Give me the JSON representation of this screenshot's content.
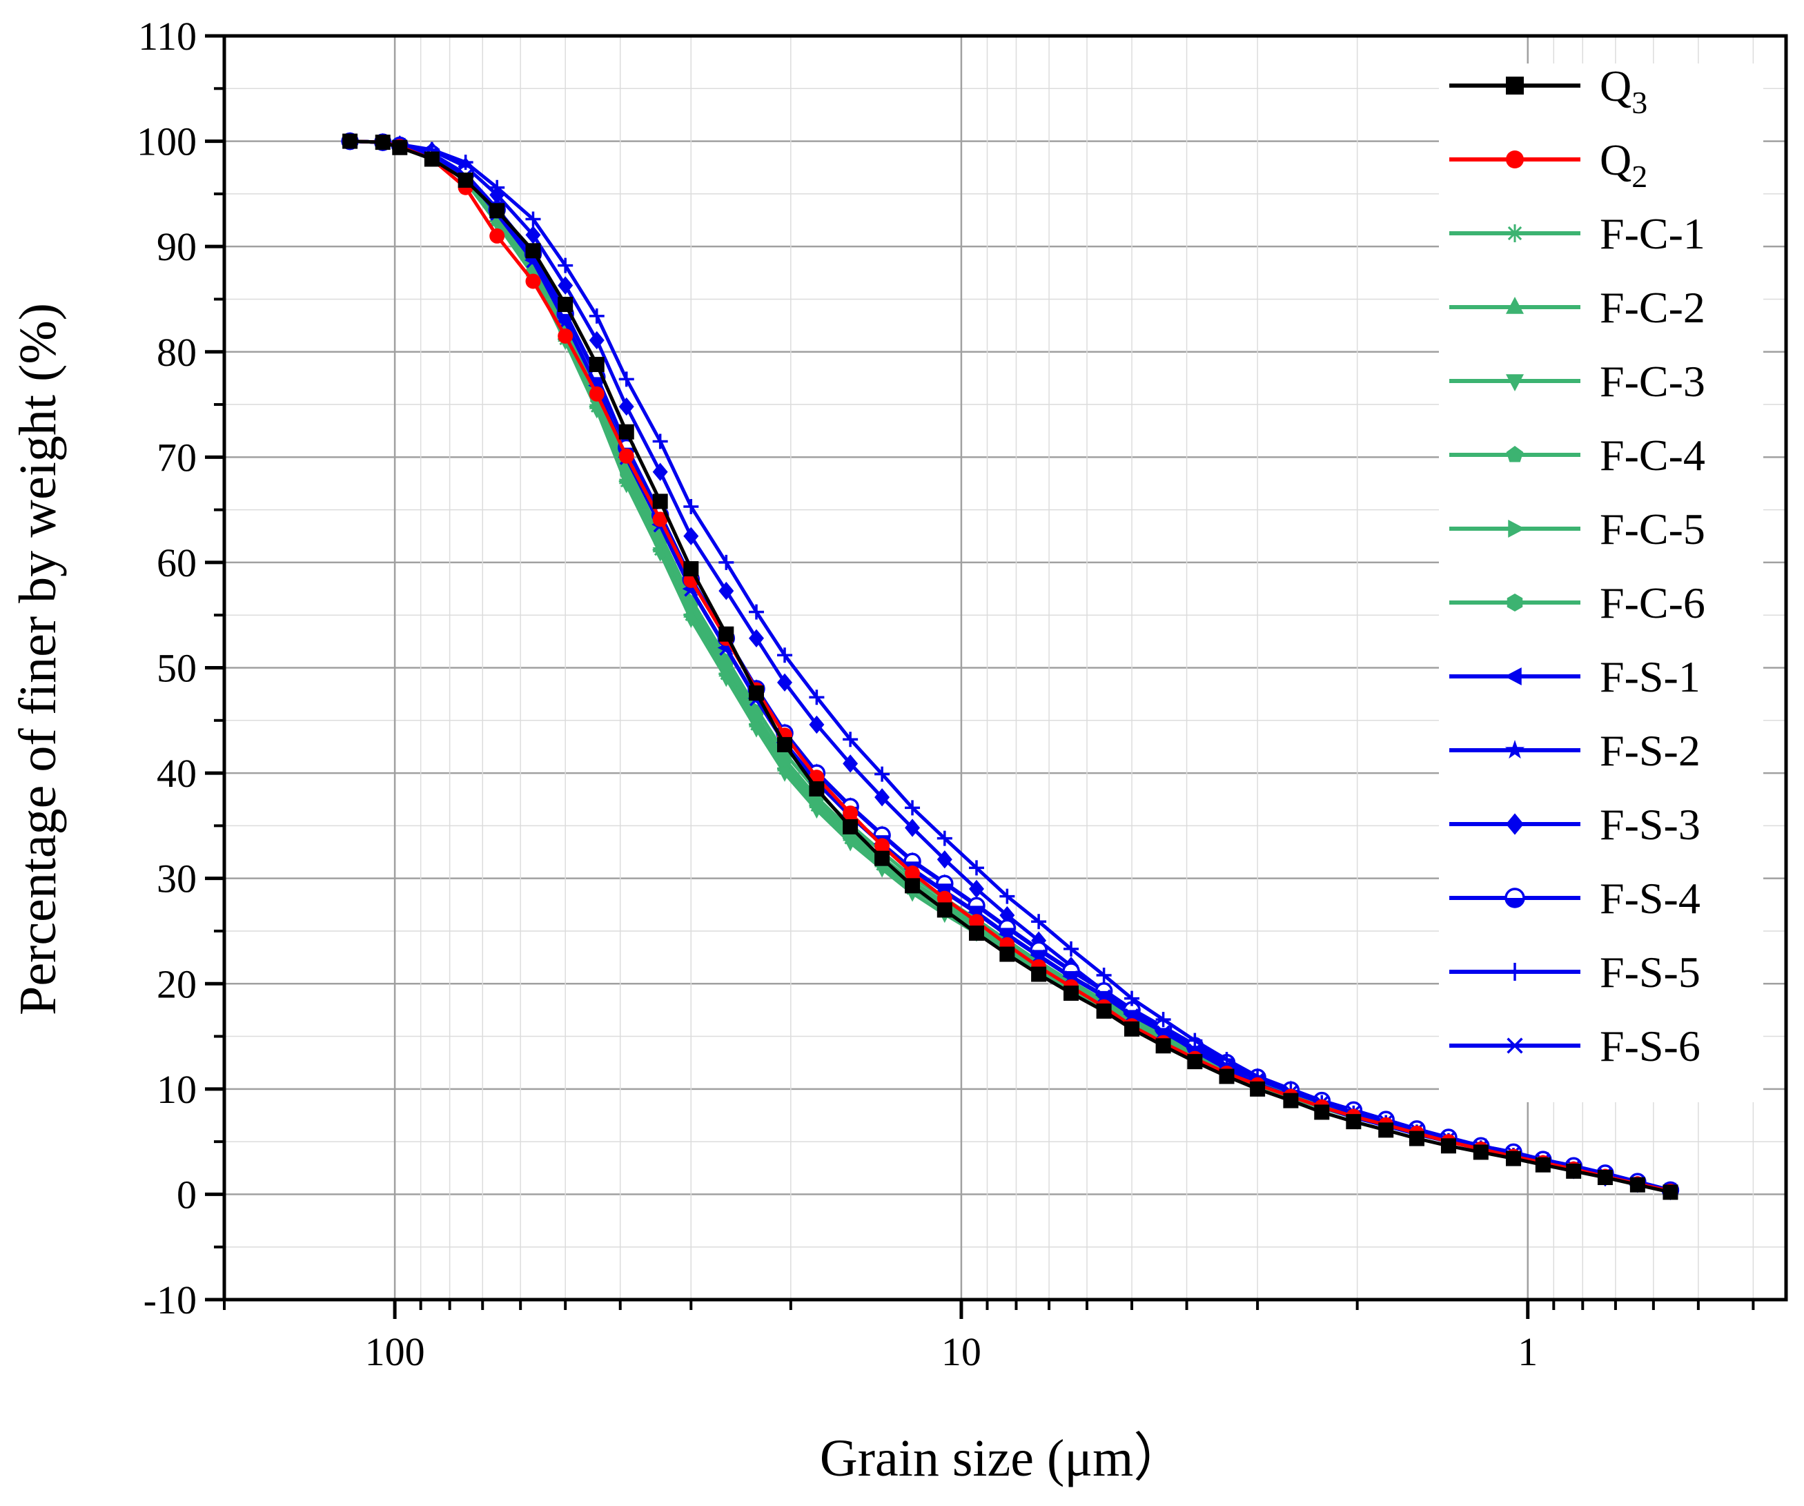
{
  "chart_data": {
    "type": "line",
    "title": "",
    "xlabel": "Grain size (μm）",
    "ylabel": "Percentage of finer by weight (%)",
    "x_scale": "log",
    "x_reversed": true,
    "xlim": [
      200,
      0.35
    ],
    "ylim": [
      -10,
      110
    ],
    "y_ticks": [
      -10,
      0,
      10,
      20,
      30,
      40,
      50,
      60,
      70,
      80,
      90,
      100,
      110
    ],
    "x_ticks": [
      100,
      10,
      1
    ],
    "x_tick_labels": [
      "100",
      "10",
      "1"
    ],
    "grid": true,
    "legend_position": "top-right",
    "x": [
      120,
      105,
      98,
      86,
      75,
      66,
      57,
      50,
      44,
      39,
      34,
      30,
      26,
      23,
      20.5,
      18,
      15.7,
      13.8,
      12.2,
      10.7,
      9.4,
      8.3,
      7.3,
      6.4,
      5.6,
      5.0,
      4.4,
      3.87,
      3.4,
      3.0,
      2.62,
      2.31,
      2.03,
      1.78,
      1.57,
      1.38,
      1.21,
      1.06,
      0.94,
      0.83,
      0.73,
      0.64,
      0.56
    ],
    "series": [
      {
        "name": "F-C-1",
        "sub": "",
        "color": "#3cb371",
        "marker": "asterisk",
        "values": [
          100,
          99.9,
          99.6,
          98.6,
          96.3,
          92.4,
          87.5,
          81.2,
          74.8,
          67.7,
          61.2,
          55.0,
          49.4,
          44.6,
          40.4,
          36.9,
          33.8,
          31.3,
          29.0,
          27.0,
          25.1,
          23.2,
          21.3,
          19.5,
          17.7,
          16.1,
          14.6,
          13.0,
          11.6,
          10.4,
          9.3,
          8.3,
          7.4,
          6.6,
          5.8,
          5.0,
          4.3,
          3.7,
          3.1,
          2.5,
          1.8,
          1.1,
          0.4
        ]
      },
      {
        "name": "F-C-2",
        "sub": "",
        "color": "#3cb371",
        "marker": "triangle-up",
        "values": [
          100,
          99.9,
          99.6,
          98.7,
          96.4,
          92.5,
          87.7,
          81.5,
          75.1,
          68.0,
          61.5,
          55.3,
          49.7,
          44.9,
          40.7,
          37.2,
          34.1,
          31.6,
          29.3,
          27.3,
          25.4,
          23.5,
          21.6,
          19.7,
          17.9,
          16.3,
          14.8,
          13.2,
          11.7,
          10.5,
          9.4,
          8.4,
          7.5,
          6.7,
          5.9,
          5.1,
          4.4,
          3.8,
          3.2,
          2.5,
          1.8,
          1.1,
          0.4
        ]
      },
      {
        "name": "F-C-3",
        "sub": "",
        "color": "#3cb371",
        "marker": "triangle-down",
        "values": [
          100,
          99.9,
          99.6,
          98.5,
          96.2,
          92.2,
          87.3,
          81.0,
          74.5,
          67.4,
          60.9,
          54.6,
          49.0,
          44.2,
          40.0,
          36.5,
          33.4,
          30.9,
          28.6,
          26.6,
          24.8,
          22.9,
          21.0,
          19.2,
          17.5,
          15.9,
          14.4,
          12.9,
          11.5,
          10.3,
          9.2,
          8.2,
          7.3,
          6.5,
          5.7,
          5.0,
          4.3,
          3.7,
          3.1,
          2.5,
          1.8,
          1.1,
          0.4
        ]
      },
      {
        "name": "F-C-4",
        "sub": "",
        "color": "#3cb371",
        "marker": "pentagon",
        "values": [
          100,
          99.9,
          99.6,
          98.6,
          96.4,
          92.6,
          87.9,
          81.8,
          75.5,
          68.5,
          62.0,
          55.8,
          50.2,
          45.4,
          41.2,
          37.6,
          34.5,
          31.9,
          29.6,
          27.6,
          25.7,
          23.7,
          21.8,
          19.9,
          18.1,
          16.5,
          14.9,
          13.3,
          11.8,
          10.6,
          9.5,
          8.5,
          7.6,
          6.7,
          5.9,
          5.1,
          4.4,
          3.8,
          3.2,
          2.6,
          1.9,
          1.1,
          0.4
        ]
      },
      {
        "name": "F-C-5",
        "sub": "",
        "color": "#3cb371",
        "marker": "triangle-right",
        "values": [
          100,
          99.9,
          99.6,
          98.7,
          96.6,
          92.9,
          88.3,
          82.3,
          76.1,
          69.2,
          62.7,
          56.5,
          50.9,
          46.1,
          41.9,
          38.3,
          35.1,
          32.5,
          30.1,
          28.1,
          26.1,
          24.1,
          22.1,
          20.2,
          18.4,
          16.7,
          15.1,
          13.5,
          12.0,
          10.7,
          9.6,
          8.6,
          7.7,
          6.8,
          6.0,
          5.2,
          4.5,
          3.8,
          3.2,
          2.6,
          1.9,
          1.1,
          0.4
        ]
      },
      {
        "name": "F-C-6",
        "sub": "",
        "color": "#3cb371",
        "marker": "hexagon",
        "values": [
          100,
          99.9,
          99.6,
          98.6,
          96.4,
          92.7,
          88.0,
          81.9,
          75.6,
          68.6,
          62.1,
          55.9,
          50.3,
          45.5,
          41.3,
          37.7,
          34.6,
          32.0,
          29.7,
          27.7,
          25.8,
          23.8,
          21.9,
          20.0,
          18.2,
          16.6,
          15.0,
          13.4,
          11.9,
          10.7,
          9.5,
          8.5,
          7.6,
          6.7,
          5.9,
          5.1,
          4.4,
          3.8,
          3.2,
          2.6,
          1.9,
          1.1,
          0.4
        ]
      },
      {
        "name": "F-S-1",
        "sub": "",
        "color": "#0000ee",
        "marker": "triangle-left",
        "values": [
          100,
          99.9,
          99.6,
          98.7,
          96.7,
          93.2,
          88.7,
          82.9,
          76.8,
          70.0,
          63.6,
          57.5,
          51.9,
          47.1,
          42.9,
          39.2,
          36.0,
          33.3,
          30.9,
          28.8,
          26.8,
          24.7,
          22.7,
          20.7,
          18.9,
          17.1,
          15.5,
          13.8,
          12.3,
          11.0,
          9.8,
          8.8,
          7.9,
          7.0,
          6.1,
          5.3,
          4.6,
          3.9,
          3.3,
          2.6,
          1.9,
          1.1,
          0.4
        ]
      },
      {
        "name": "F-S-2",
        "sub": "",
        "color": "#0000ee",
        "marker": "star",
        "values": [
          100,
          99.9,
          99.6,
          98.8,
          96.9,
          93.6,
          89.4,
          83.7,
          77.7,
          71.0,
          64.6,
          58.5,
          52.9,
          48.1,
          43.9,
          40.1,
          36.9,
          34.2,
          31.7,
          29.6,
          27.5,
          25.4,
          23.3,
          21.3,
          19.4,
          17.6,
          15.9,
          14.2,
          12.6,
          11.2,
          10.0,
          8.9,
          8.0,
          7.1,
          6.2,
          5.4,
          4.6,
          4.0,
          3.3,
          2.7,
          2.0,
          1.2,
          0.4
        ]
      },
      {
        "name": "F-S-3",
        "sub": "",
        "color": "#0000ee",
        "marker": "diamond",
        "values": [
          100,
          99.9,
          99.7,
          99.1,
          97.6,
          94.9,
          91.1,
          86.3,
          81.1,
          74.8,
          68.6,
          62.5,
          57.3,
          52.8,
          48.6,
          44.6,
          40.9,
          37.7,
          34.8,
          31.8,
          29.0,
          26.5,
          24.1,
          21.7,
          19.3,
          17.3,
          15.5,
          13.6,
          11.9,
          10.5,
          9.3,
          8.3,
          7.3,
          6.5,
          5.7,
          5.0,
          4.3,
          3.6,
          3.0,
          2.3,
          1.6,
          1.0,
          0.3
        ]
      },
      {
        "name": "F-S-4",
        "sub": "",
        "color": "#0000ee",
        "marker": "circle-half",
        "values": [
          100,
          99.9,
          99.6,
          98.8,
          96.9,
          93.5,
          89.3,
          83.6,
          77.6,
          70.9,
          64.5,
          58.4,
          52.8,
          48.0,
          43.8,
          40.0,
          36.8,
          34.1,
          31.6,
          29.5,
          27.4,
          25.3,
          23.2,
          21.2,
          19.3,
          17.5,
          15.8,
          14.1,
          12.5,
          11.1,
          9.9,
          8.9,
          8.0,
          7.1,
          6.2,
          5.4,
          4.6,
          4.0,
          3.3,
          2.7,
          2.0,
          1.2,
          0.4
        ]
      },
      {
        "name": "F-S-5",
        "sub": "",
        "color": "#0000ee",
        "marker": "plus",
        "values": [
          100,
          99.9,
          99.7,
          99.2,
          98.0,
          95.6,
          92.6,
          88.2,
          83.4,
          77.4,
          71.5,
          65.3,
          60.0,
          55.3,
          51.2,
          47.2,
          43.2,
          39.9,
          36.7,
          33.8,
          31.0,
          28.3,
          25.9,
          23.3,
          20.8,
          18.6,
          16.6,
          14.6,
          12.8,
          11.2,
          9.8,
          8.7,
          7.7,
          6.8,
          5.9,
          5.1,
          4.4,
          3.7,
          3.0,
          2.4,
          1.7,
          1.0,
          0.3
        ]
      },
      {
        "name": "F-S-6",
        "sub": "",
        "color": "#0000ee",
        "marker": "cross",
        "values": [
          100,
          99.9,
          99.6,
          98.7,
          96.7,
          93.1,
          88.6,
          82.8,
          76.7,
          69.9,
          63.5,
          57.4,
          51.8,
          47.0,
          42.8,
          39.1,
          35.9,
          33.2,
          30.8,
          28.7,
          26.7,
          24.6,
          22.6,
          20.6,
          18.8,
          17.0,
          15.4,
          13.7,
          12.2,
          10.9,
          9.7,
          8.7,
          7.8,
          6.9,
          6.1,
          5.3,
          4.5,
          3.9,
          3.2,
          2.6,
          1.9,
          1.1,
          0.4
        ]
      },
      {
        "name": "Q",
        "sub": "2",
        "color": "#ff0000",
        "marker": "circle",
        "values": [
          100,
          99.9,
          99.5,
          98.3,
          95.6,
          91.0,
          86.7,
          81.5,
          76.0,
          70.1,
          64.1,
          58.3,
          52.8,
          47.9,
          43.6,
          39.6,
          36.2,
          33.1,
          30.5,
          28.1,
          25.9,
          23.7,
          21.6,
          19.7,
          17.8,
          16.0,
          14.4,
          12.9,
          11.5,
          10.4,
          9.3,
          8.3,
          7.4,
          6.6,
          5.8,
          5.0,
          4.3,
          3.6,
          3.0,
          2.4,
          1.7,
          1.0,
          0.3
        ]
      },
      {
        "name": "Q",
        "sub": "3",
        "color": "#000000",
        "marker": "square",
        "values": [
          100,
          99.9,
          99.4,
          98.3,
          96.3,
          93.4,
          89.6,
          84.5,
          78.8,
          72.4,
          65.8,
          59.4,
          53.2,
          47.6,
          42.7,
          38.5,
          34.9,
          31.9,
          29.3,
          27.0,
          24.8,
          22.8,
          20.9,
          19.1,
          17.4,
          15.7,
          14.1,
          12.6,
          11.2,
          10.0,
          8.9,
          7.8,
          6.9,
          6.1,
          5.3,
          4.6,
          4.0,
          3.4,
          2.8,
          2.2,
          1.6,
          0.9,
          0.2
        ]
      }
    ],
    "legend_order": [
      "Q3",
      "Q2",
      "F-C-1",
      "F-C-2",
      "F-C-3",
      "F-C-4",
      "F-C-5",
      "F-C-6",
      "F-S-1",
      "F-S-2",
      "F-S-3",
      "F-S-4",
      "F-S-5",
      "F-S-6"
    ]
  }
}
